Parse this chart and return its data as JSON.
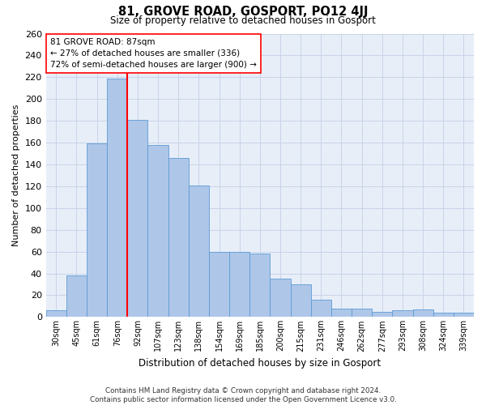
{
  "title": "81, GROVE ROAD, GOSPORT, PO12 4JJ",
  "subtitle": "Size of property relative to detached houses in Gosport",
  "xlabel": "Distribution of detached houses by size in Gosport",
  "ylabel": "Number of detached properties",
  "categories": [
    "30sqm",
    "45sqm",
    "61sqm",
    "76sqm",
    "92sqm",
    "107sqm",
    "123sqm",
    "138sqm",
    "154sqm",
    "169sqm",
    "185sqm",
    "200sqm",
    "215sqm",
    "231sqm",
    "246sqm",
    "262sqm",
    "277sqm",
    "293sqm",
    "308sqm",
    "324sqm",
    "339sqm"
  ],
  "values": [
    6,
    38,
    159,
    219,
    181,
    158,
    146,
    121,
    60,
    60,
    58,
    35,
    30,
    16,
    8,
    8,
    5,
    6,
    7,
    4,
    4
  ],
  "bar_color": "#aec6e8",
  "bar_edge_color": "#5b9bd5",
  "grid_color": "#c8d4e8",
  "background_color": "#e8eef8",
  "red_line_index": 4,
  "annotation_line1": "81 GROVE ROAD: 87sqm",
  "annotation_line2": "← 27% of detached houses are smaller (336)",
  "annotation_line3": "72% of semi-detached houses are larger (900) →",
  "annotation_box_color": "white",
  "annotation_box_edge": "red",
  "footer_line1": "Contains HM Land Registry data © Crown copyright and database right 2024.",
  "footer_line2": "Contains public sector information licensed under the Open Government Licence v3.0.",
  "ylim": [
    0,
    260
  ],
  "yticks": [
    0,
    20,
    40,
    60,
    80,
    100,
    120,
    140,
    160,
    180,
    200,
    220,
    240,
    260
  ]
}
